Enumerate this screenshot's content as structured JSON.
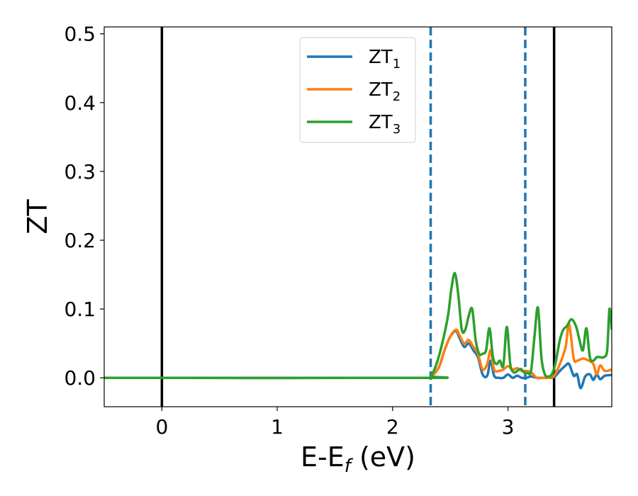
{
  "chart_data": {
    "type": "line",
    "xlabel": "E-E",
    "xlabel_sub": "f",
    "xlabel_unit": " (eV)",
    "ylabel": "ZT",
    "xlim": [
      -0.5,
      3.9
    ],
    "ylim": [
      -0.042,
      0.51
    ],
    "xticks": [
      0,
      1,
      2,
      3
    ],
    "xtick_labels": [
      "0",
      "1",
      "2",
      "3"
    ],
    "yticks": [
      0.0,
      0.1,
      0.2,
      0.3,
      0.4,
      0.5
    ],
    "ytick_labels": [
      "0.0",
      "0.1",
      "0.2",
      "0.3",
      "0.4",
      "0.5"
    ],
    "grid": false,
    "legend_position": "top-center",
    "vlines": [
      {
        "x": 0.0,
        "style": "solid",
        "color": "#000000"
      },
      {
        "x": 3.4,
        "style": "solid",
        "color": "#000000"
      },
      {
        "x": 2.33,
        "style": "dashed",
        "color": "#1f77b4"
      },
      {
        "x": 3.15,
        "style": "dashed",
        "color": "#1f77b4"
      }
    ],
    "series": [
      {
        "name": "ZT",
        "name_sub": "1",
        "color": "#1f77b4",
        "x": [
          -0.5,
          2.25,
          2.33,
          2.4,
          2.45,
          2.5,
          2.55,
          2.58,
          2.62,
          2.66,
          2.7,
          2.74,
          2.78,
          2.82,
          2.85,
          2.88,
          2.92,
          2.96,
          3.0,
          3.04,
          3.08,
          3.12,
          3.16,
          3.2,
          3.25,
          3.3,
          3.35,
          3.4,
          3.45,
          3.5,
          3.53,
          3.57,
          3.6,
          3.63,
          3.67,
          3.71,
          3.74,
          3.77,
          3.8,
          3.84,
          3.9
        ],
        "y": [
          0.0,
          0.0,
          0.002,
          0.015,
          0.04,
          0.06,
          0.068,
          0.058,
          0.045,
          0.05,
          0.04,
          0.03,
          0.005,
          0.003,
          0.025,
          0.003,
          0.0,
          0.0,
          0.005,
          0.0,
          0.003,
          0.0,
          0.0,
          0.002,
          0.0,
          0.0,
          0.0,
          0.001,
          0.01,
          0.018,
          0.02,
          0.003,
          0.005,
          -0.015,
          0.002,
          0.005,
          -0.003,
          0.005,
          -0.002,
          0.003,
          0.004
        ]
      },
      {
        "name": "ZT",
        "name_sub": "2",
        "color": "#ff7f0e",
        "x": [
          -0.5,
          2.25,
          2.33,
          2.4,
          2.45,
          2.5,
          2.55,
          2.58,
          2.62,
          2.66,
          2.7,
          2.74,
          2.78,
          2.82,
          2.85,
          2.88,
          2.92,
          2.96,
          3.0,
          3.04,
          3.08,
          3.12,
          3.16,
          3.2,
          3.25,
          3.3,
          3.35,
          3.4,
          3.45,
          3.5,
          3.53,
          3.57,
          3.6,
          3.65,
          3.7,
          3.74,
          3.77,
          3.8,
          3.84,
          3.9
        ],
        "y": [
          0.0,
          0.0,
          0.002,
          0.015,
          0.04,
          0.06,
          0.07,
          0.062,
          0.05,
          0.055,
          0.045,
          0.035,
          0.012,
          0.02,
          0.04,
          0.012,
          0.01,
          0.012,
          0.017,
          0.012,
          0.014,
          0.01,
          0.01,
          0.008,
          0.0,
          0.0,
          0.0,
          0.003,
          0.02,
          0.045,
          0.078,
          0.028,
          0.025,
          0.028,
          0.025,
          0.02,
          0.005,
          0.018,
          0.01,
          0.012
        ]
      },
      {
        "name": "ZT",
        "name_sub": "3",
        "color": "#2ca02c",
        "x": [
          -0.5,
          2.25,
          2.33,
          2.38,
          2.43,
          2.48,
          2.51,
          2.54,
          2.57,
          2.6,
          2.63,
          2.66,
          2.69,
          2.72,
          2.75,
          2.78,
          2.81,
          2.84,
          2.87,
          2.9,
          2.93,
          2.96,
          2.99,
          3.02,
          3.05,
          3.08,
          3.11,
          3.14,
          3.17,
          3.2,
          3.23,
          3.26,
          3.29,
          3.32,
          3.35,
          3.38,
          3.41,
          3.45,
          3.48,
          3.51,
          3.55,
          3.59,
          3.62,
          3.65,
          3.68,
          3.71,
          3.74,
          3.77,
          3.8,
          3.83,
          3.86,
          3.88,
          3.9
        ],
        "y": [
          0.0,
          0.0,
          0.003,
          0.02,
          0.05,
          0.09,
          0.13,
          0.152,
          0.12,
          0.07,
          0.07,
          0.09,
          0.1,
          0.055,
          0.035,
          0.035,
          0.04,
          0.072,
          0.03,
          0.02,
          0.025,
          0.018,
          0.074,
          0.02,
          0.008,
          0.01,
          0.013,
          0.008,
          0.007,
          0.01,
          0.06,
          0.102,
          0.03,
          0.005,
          0.002,
          0.005,
          0.02,
          0.055,
          0.07,
          0.075,
          0.085,
          0.075,
          0.055,
          0.04,
          0.072,
          0.03,
          0.025,
          0.03,
          0.03,
          0.03,
          0.04,
          0.1,
          0.07
        ]
      }
    ]
  }
}
